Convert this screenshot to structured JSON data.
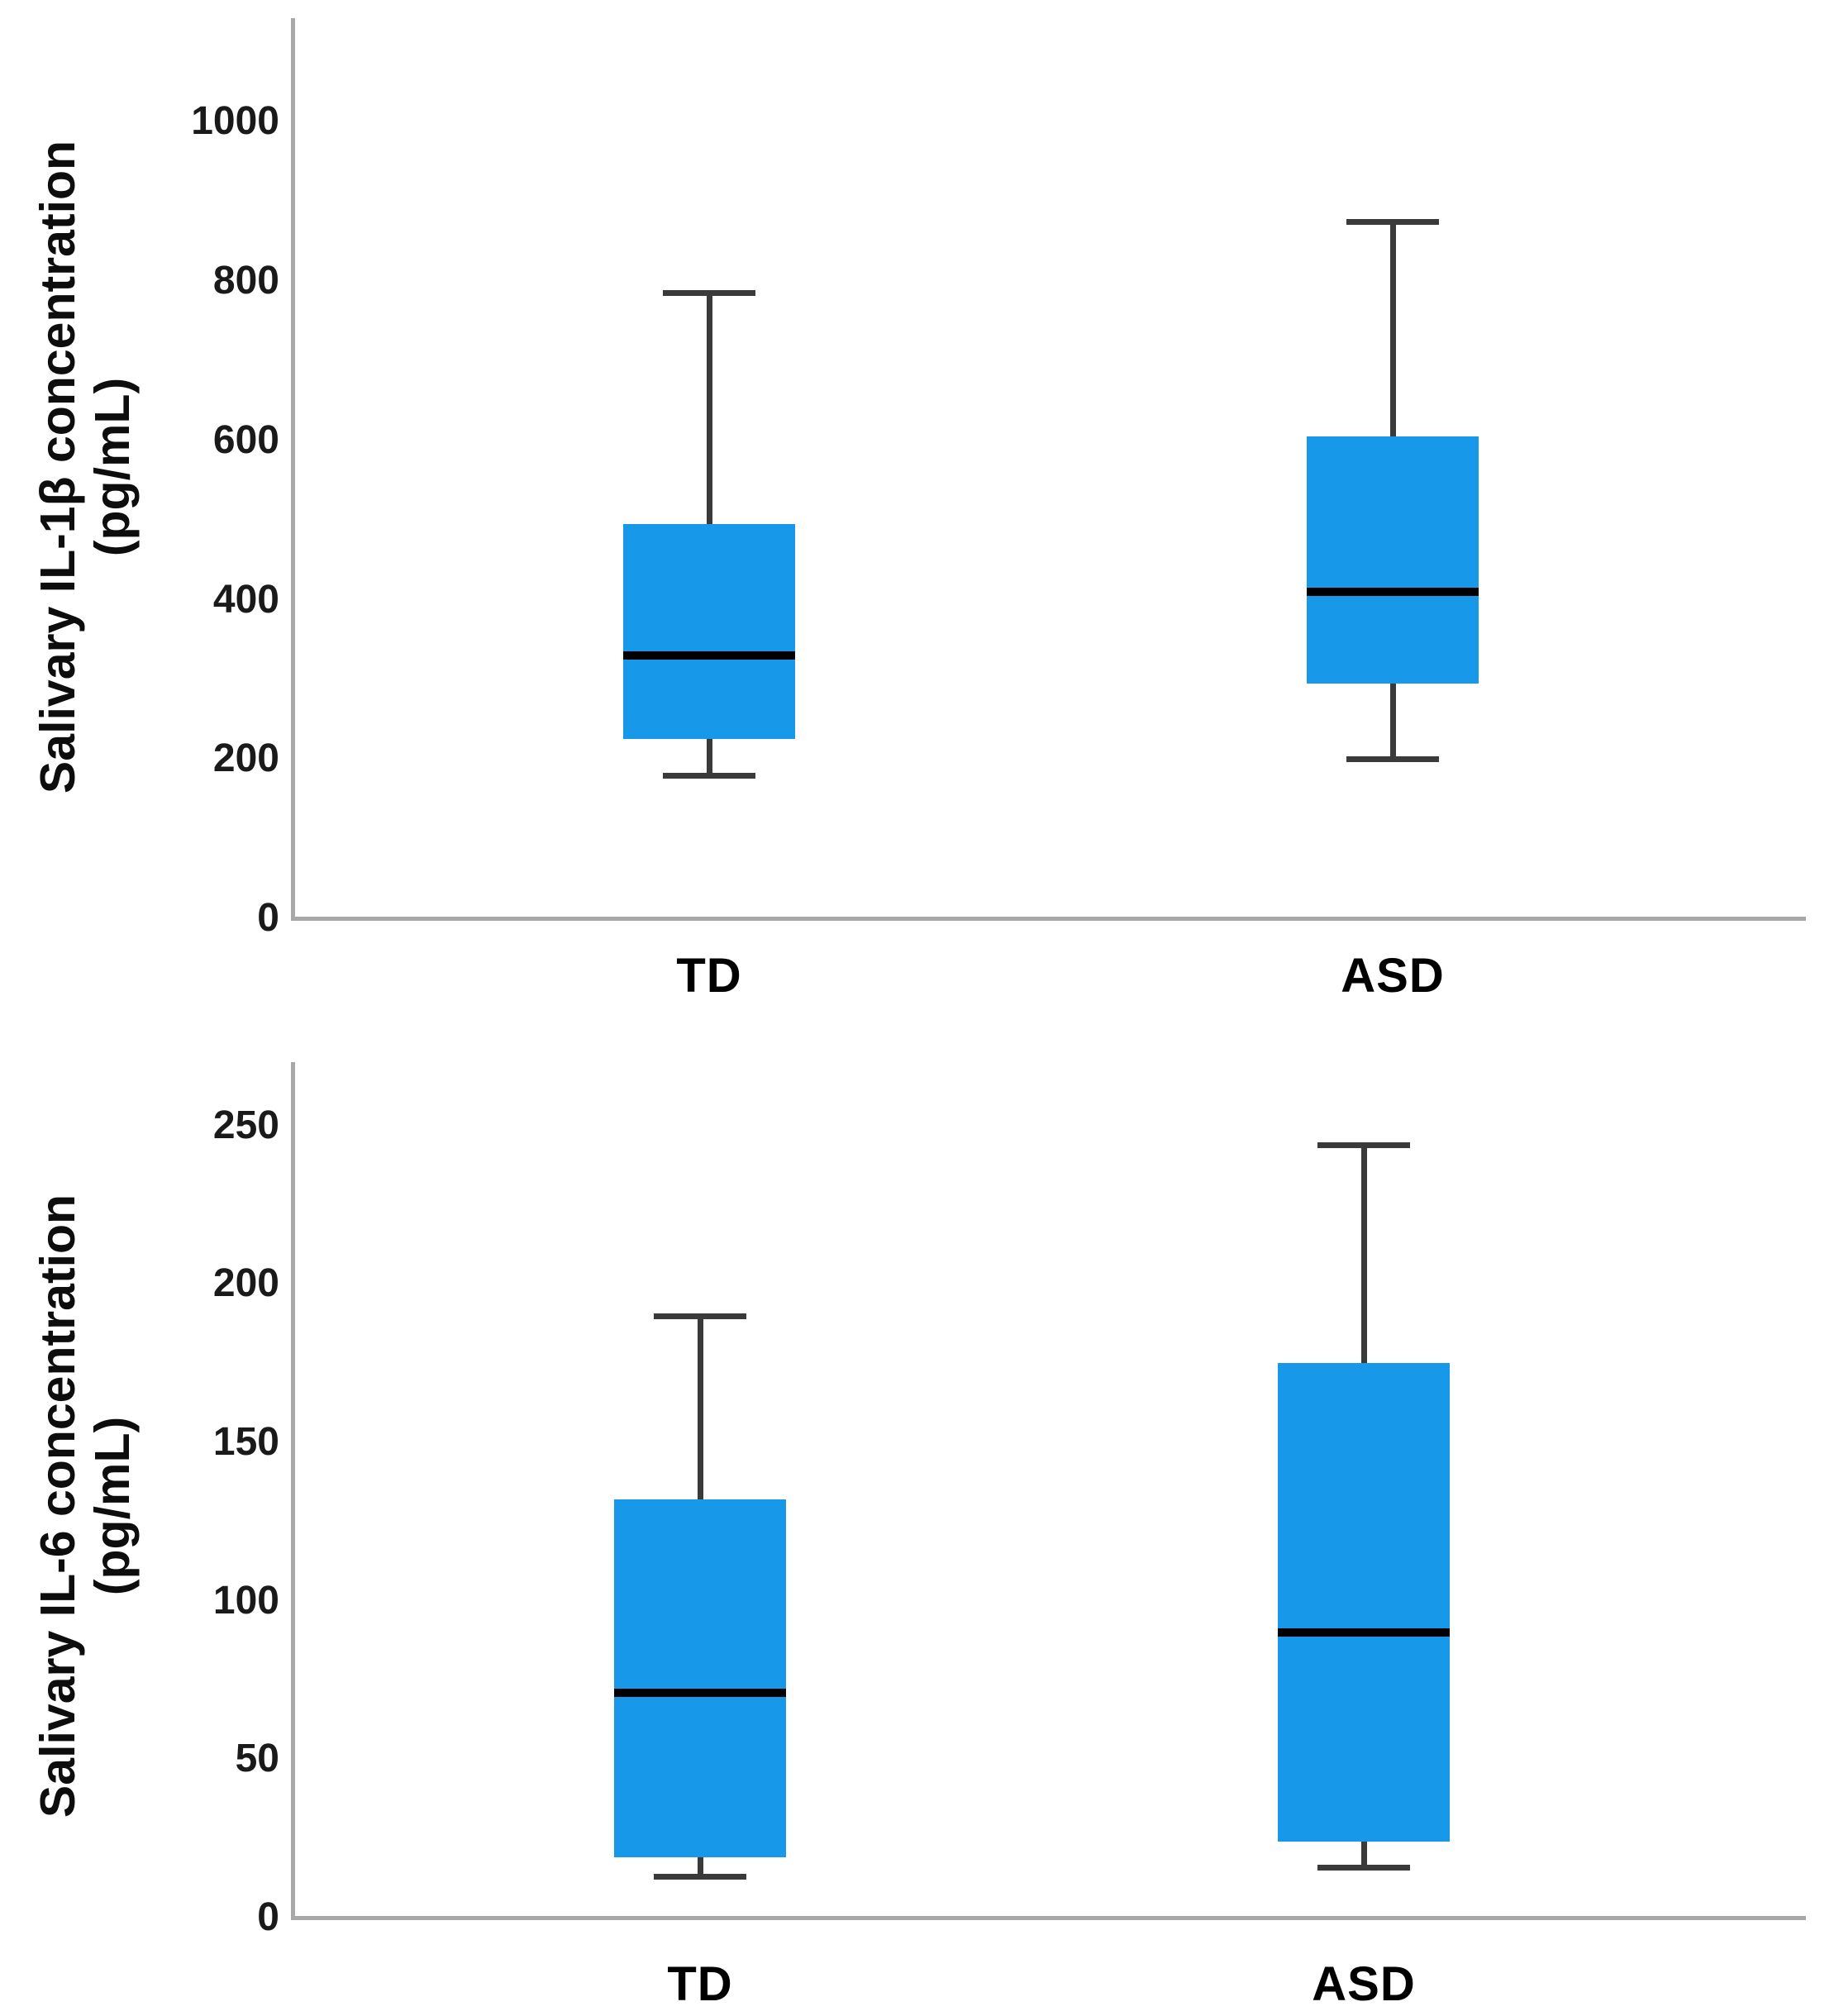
{
  "figure": {
    "background": "#ffffff",
    "box_fill": "#1798e8",
    "median_color": "#000000",
    "whisker_color": "#3a3a3a",
    "axis_color": "#a8a8a8",
    "text_color": "#1a1a1a"
  },
  "chart_data": [
    {
      "type": "boxplot",
      "ylabel": "Salivary IL-1β concentration (pg/mL)",
      "ylabel_line1": "Salivary IL-1β concentration",
      "ylabel_line2": "(pg/mL)",
      "categories": [
        "TD",
        "ASD"
      ],
      "yticks": [
        0,
        200,
        400,
        600,
        800,
        1000
      ],
      "ylim": [
        0,
        1130
      ],
      "grid": false,
      "legend": "none",
      "series": [
        {
          "name": "TD",
          "min": 180,
          "q1": 225,
          "median": 330,
          "q3": 495,
          "max": 785
        },
        {
          "name": "ASD",
          "min": 200,
          "q1": 295,
          "median": 410,
          "q3": 605,
          "max": 875
        }
      ]
    },
    {
      "type": "boxplot",
      "ylabel": "Salivary IL-6 concentration (pg/mL)",
      "ylabel_line1": "Salivary IL-6 concentration",
      "ylabel_line2": "(pg/mL)",
      "categories": [
        "TD",
        "ASD"
      ],
      "yticks": [
        0,
        50,
        100,
        150,
        200,
        250
      ],
      "ylim": [
        0,
        270
      ],
      "grid": false,
      "legend": "none",
      "series": [
        {
          "name": "TD",
          "min": 13,
          "q1": 19,
          "median": 71,
          "q3": 132,
          "max": 190
        },
        {
          "name": "ASD",
          "min": 16,
          "q1": 24,
          "median": 90,
          "q3": 175,
          "max": 244
        }
      ]
    }
  ]
}
